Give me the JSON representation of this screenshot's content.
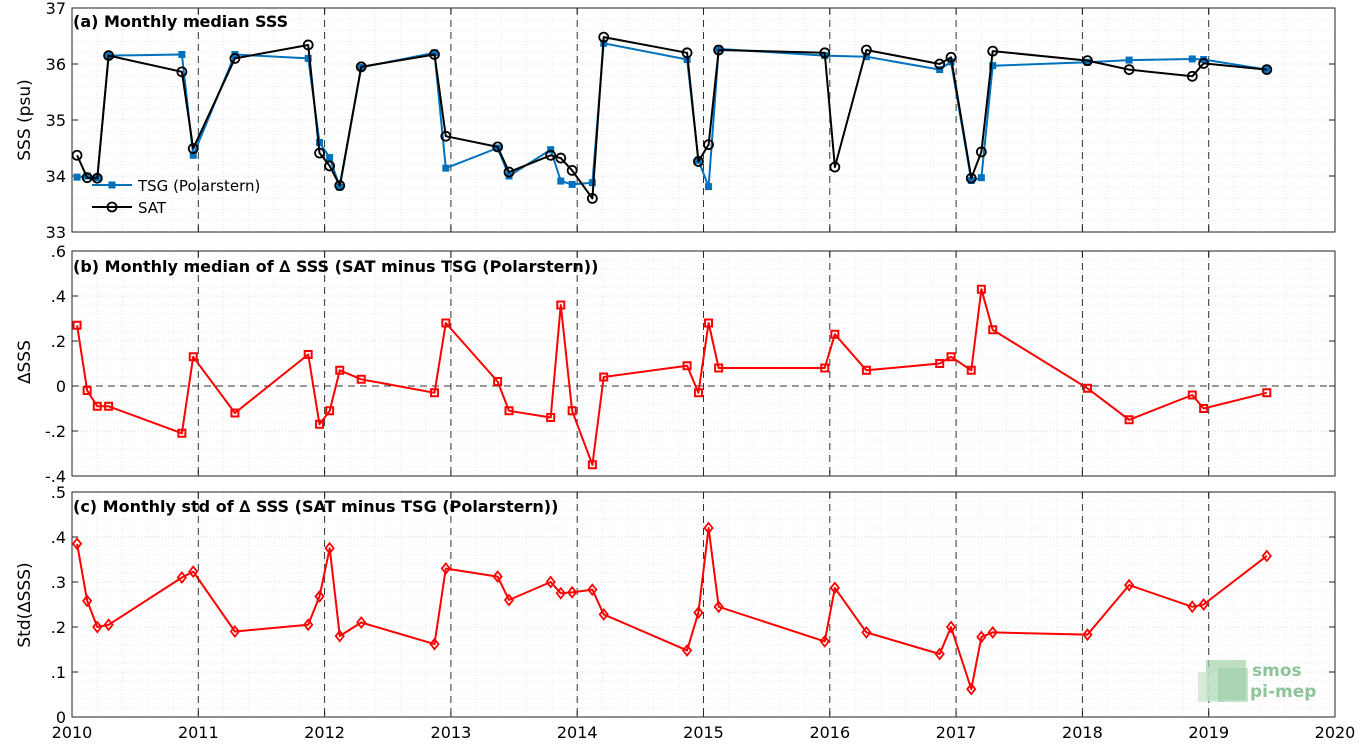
{
  "chart_data": [
    {
      "type": "line",
      "title": "(a) Monthly median SSS",
      "xlabel": "",
      "ylabel": "SSS (psu)",
      "xlim": [
        2010,
        2020
      ],
      "ylim": [
        33,
        37
      ],
      "xticks": [
        2010,
        2011,
        2012,
        2013,
        2014,
        2015,
        2016,
        2017,
        2018,
        2019,
        2020
      ],
      "yticks": [
        33,
        34,
        35,
        36,
        37
      ],
      "grid": true,
      "legend": "left",
      "series": [
        {
          "name": "TSG (Polarstern)",
          "color": "#0072bd",
          "marker": "filled-square",
          "x": [
            2010.04,
            2010.12,
            2010.2,
            2010.29,
            2010.87,
            2010.96,
            2011.29,
            2011.87,
            2011.96,
            2012.04,
            2012.12,
            2012.29,
            2012.87,
            2012.96,
            2013.37,
            2013.46,
            2013.79,
            2013.87,
            2013.96,
            2014.12,
            2014.21,
            2014.87,
            2014.96,
            2015.04,
            2015.12,
            2015.96,
            2016.29,
            2016.87,
            2016.96,
            2017.12,
            2017.2,
            2017.29,
            2018.04,
            2018.37,
            2018.87,
            2018.96,
            2019.46
          ],
          "values": [
            33.98,
            34.0,
            33.97,
            36.15,
            36.17,
            34.37,
            36.17,
            36.1,
            34.6,
            34.33,
            33.8,
            35.94,
            36.2,
            34.14,
            34.5,
            34.0,
            34.47,
            33.91,
            33.85,
            33.88,
            36.37,
            36.08,
            34.28,
            33.81,
            36.27,
            36.15,
            36.13,
            35.9,
            36.04,
            33.92,
            33.97,
            35.97,
            36.03,
            36.07,
            36.09,
            36.08,
            35.9
          ]
        },
        {
          "name": "SAT",
          "color": "#000000",
          "marker": "open-circle",
          "x": [
            2010.04,
            2010.12,
            2010.2,
            2010.29,
            2010.87,
            2010.96,
            2011.29,
            2011.87,
            2011.96,
            2012.04,
            2012.12,
            2012.29,
            2012.87,
            2012.96,
            2013.37,
            2013.46,
            2013.79,
            2013.87,
            2013.96,
            2014.12,
            2014.21,
            2014.87,
            2014.96,
            2015.04,
            2015.12,
            2015.96,
            2016.04,
            2016.29,
            2016.87,
            2016.96,
            2017.12,
            2017.2,
            2017.29,
            2018.04,
            2018.37,
            2018.87,
            2018.96,
            2019.46
          ],
          "values": [
            34.37,
            33.97,
            33.96,
            36.15,
            35.86,
            34.49,
            36.1,
            36.34,
            34.41,
            34.18,
            33.83,
            35.95,
            36.17,
            34.71,
            34.52,
            34.07,
            34.37,
            34.32,
            34.1,
            33.6,
            36.48,
            36.2,
            34.26,
            34.56,
            36.25,
            36.2,
            34.16,
            36.25,
            36.0,
            36.12,
            33.96,
            34.43,
            36.23,
            36.06,
            35.9,
            35.78,
            36.01,
            35.9
          ]
        }
      ]
    },
    {
      "type": "line",
      "title": "(b) Monthly median of ∆ SSS (SAT minus TSG (Polarstern))",
      "xlabel": "",
      "ylabel": "∆SSS",
      "xlim": [
        2010,
        2020
      ],
      "ylim": [
        -0.4,
        0.6
      ],
      "xticks": [
        2010,
        2011,
        2012,
        2013,
        2014,
        2015,
        2016,
        2017,
        2018,
        2019,
        2020
      ],
      "yticks": [
        -0.4,
        -0.2,
        0,
        0.2,
        0.4,
        0.6
      ],
      "grid": true,
      "series": [
        {
          "color": "#ff0000",
          "marker": "open-square",
          "x": [
            2010.04,
            2010.12,
            2010.2,
            2010.29,
            2010.87,
            2010.96,
            2011.29,
            2011.87,
            2011.96,
            2012.04,
            2012.12,
            2012.29,
            2012.87,
            2012.96,
            2013.37,
            2013.46,
            2013.79,
            2013.87,
            2013.96,
            2014.12,
            2014.21,
            2014.87,
            2014.96,
            2015.04,
            2015.12,
            2015.96,
            2016.04,
            2016.29,
            2016.87,
            2016.96,
            2017.12,
            2017.2,
            2017.29,
            2018.04,
            2018.37,
            2018.87,
            2018.96,
            2019.46
          ],
          "values": [
            0.27,
            -0.02,
            -0.09,
            -0.09,
            -0.21,
            0.13,
            -0.12,
            0.14,
            -0.17,
            -0.11,
            0.07,
            0.03,
            -0.03,
            0.28,
            0.02,
            -0.11,
            -0.14,
            0.36,
            -0.11,
            -0.35,
            0.04,
            0.09,
            -0.03,
            0.28,
            0.08,
            0.08,
            0.23,
            0.07,
            0.1,
            0.13,
            0.07,
            0.43,
            0.25,
            -0.01,
            -0.15,
            -0.04,
            -0.1,
            -0.03
          ]
        }
      ]
    },
    {
      "type": "line",
      "title": "(c) Monthly std of ∆ SSS (SAT minus TSG (Polarstern))",
      "xlabel": "",
      "ylabel": "Std(∆SSS)",
      "xlim": [
        2010,
        2020
      ],
      "ylim": [
        0,
        0.5
      ],
      "xticks": [
        2010,
        2011,
        2012,
        2013,
        2014,
        2015,
        2016,
        2017,
        2018,
        2019,
        2020
      ],
      "yticks": [
        0,
        0.1,
        0.2,
        0.3,
        0.4,
        0.5
      ],
      "grid": true,
      "series": [
        {
          "color": "#ff0000",
          "marker": "open-diamond",
          "x": [
            2010.04,
            2010.12,
            2010.2,
            2010.29,
            2010.87,
            2010.96,
            2011.29,
            2011.87,
            2011.96,
            2012.04,
            2012.12,
            2012.29,
            2012.87,
            2012.96,
            2013.37,
            2013.46,
            2013.79,
            2013.87,
            2013.96,
            2014.12,
            2014.21,
            2014.87,
            2014.96,
            2015.04,
            2015.12,
            2015.96,
            2016.04,
            2016.29,
            2016.87,
            2016.96,
            2017.12,
            2017.2,
            2017.29,
            2018.04,
            2018.37,
            2018.87,
            2018.96,
            2019.46
          ],
          "values": [
            0.385,
            0.258,
            0.2,
            0.205,
            0.31,
            0.323,
            0.19,
            0.205,
            0.268,
            0.375,
            0.18,
            0.21,
            0.162,
            0.33,
            0.312,
            0.26,
            0.3,
            0.275,
            0.277,
            0.283,
            0.228,
            0.148,
            0.232,
            0.42,
            0.245,
            0.168,
            0.287,
            0.188,
            0.14,
            0.2,
            0.062,
            0.178,
            0.188,
            0.183,
            0.293,
            0.245,
            0.25,
            0.358
          ]
        }
      ]
    }
  ],
  "logo": {
    "line1": "smos",
    "line2": "pi-mep"
  }
}
